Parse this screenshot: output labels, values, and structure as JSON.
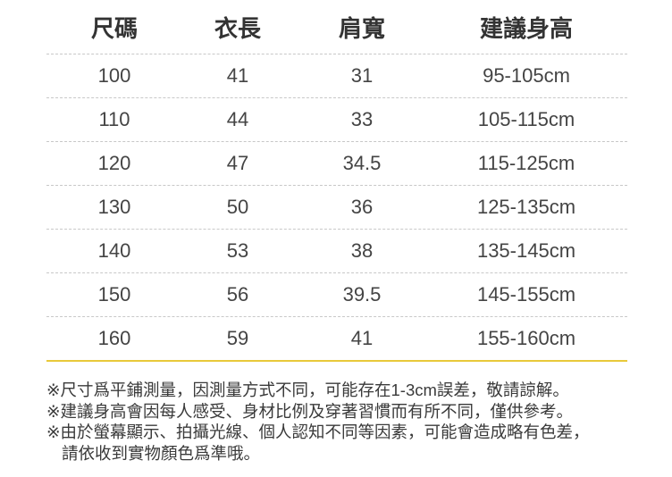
{
  "table": {
    "headers": [
      "尺碼",
      "衣長",
      "肩寬",
      "建議身高"
    ],
    "rows": [
      [
        "100",
        "41",
        "31",
        "95-105cm"
      ],
      [
        "110",
        "44",
        "33",
        "105-115cm"
      ],
      [
        "120",
        "47",
        "34.5",
        "115-125cm"
      ],
      [
        "130",
        "50",
        "36",
        "125-135cm"
      ],
      [
        "140",
        "53",
        "38",
        "135-145cm"
      ],
      [
        "150",
        "56",
        "39.5",
        "145-155cm"
      ],
      [
        "160",
        "59",
        "41",
        "155-160cm"
      ]
    ]
  },
  "notes": [
    "※尺寸爲平鋪測量，因測量方式不同，可能存在1-3cm誤差，敬請諒解。",
    "※建議身高會因每人感受、身材比例及穿著習慣而有所不同，僅供參考。",
    "※由於螢幕顯示、拍攝光線、個人認知不同等因素，可能會造成略有色差，",
    "請依收到實物顏色爲準哦。"
  ],
  "colors": {
    "accent_line": "#e8c93a"
  }
}
